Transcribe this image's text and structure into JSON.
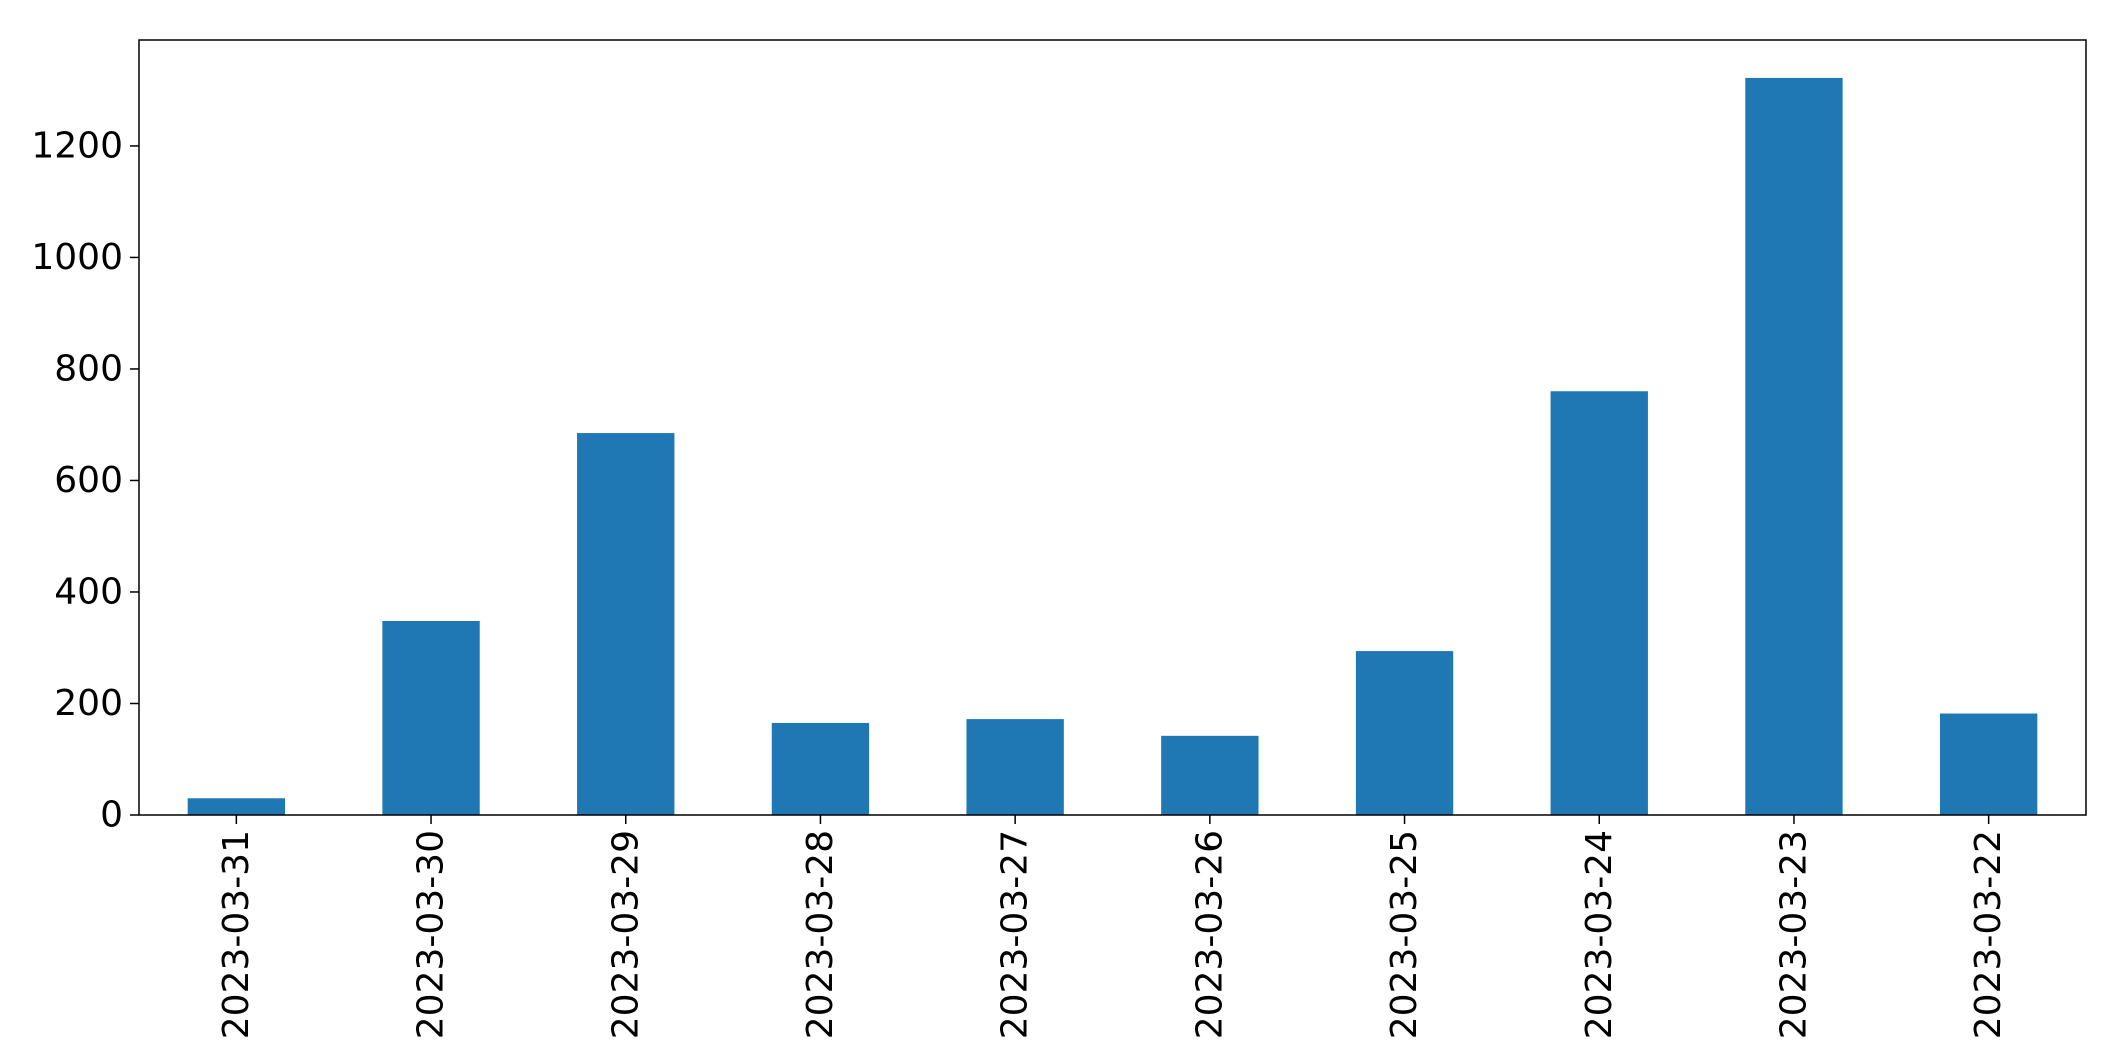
{
  "chart_data": {
    "type": "bar",
    "title": "",
    "xlabel": "",
    "ylabel": "",
    "categories": [
      "2023-03-31",
      "2023-03-30",
      "2023-03-29",
      "2023-03-28",
      "2023-03-27",
      "2023-03-26",
      "2023-03-25",
      "2023-03-24",
      "2023-03-23",
      "2023-03-22"
    ],
    "values": [
      30,
      348,
      685,
      165,
      172,
      142,
      294,
      760,
      1322,
      182
    ],
    "ylim": [
      0,
      1390
    ],
    "yticks": [
      0,
      200,
      400,
      600,
      800,
      1000,
      1200
    ],
    "bar_color": "#1f77b4",
    "grid": false,
    "legend": false
  }
}
